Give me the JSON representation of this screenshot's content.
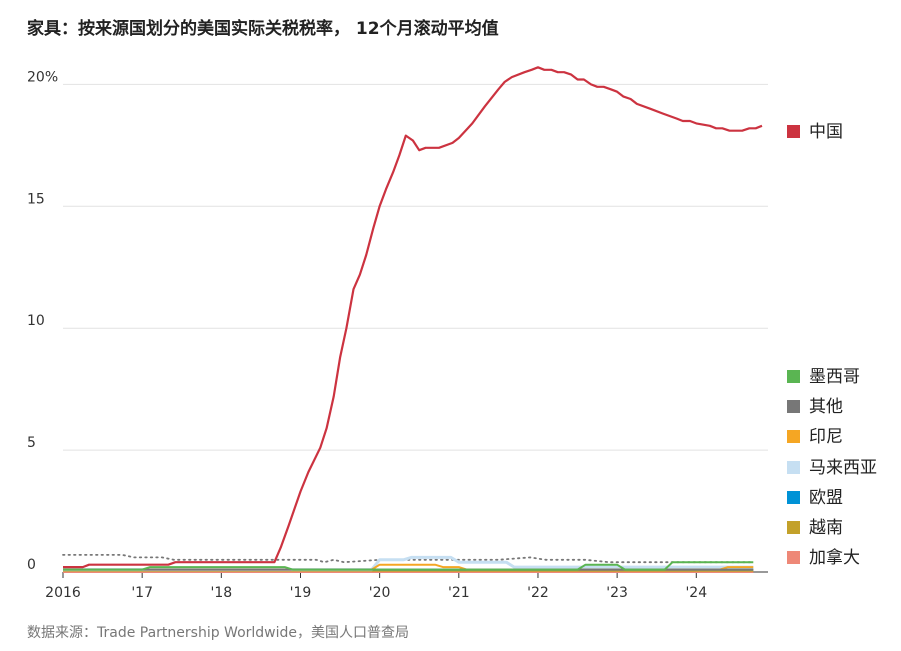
{
  "title": "家具：按来源国划分的美国实际关税税率， 12个月滚动平均值",
  "source": "数据来源：Trade Partnership Worldwide，美国人口普查局",
  "chart_data": {
    "type": "line",
    "x_tick_labels": [
      "2016",
      "'17",
      "'18",
      "'19",
      "'20",
      "'21",
      "'22",
      "'23",
      "'24"
    ],
    "y_tick_labels": [
      "0",
      "5",
      "10",
      "15",
      "20%"
    ],
    "y_ticks": [
      0,
      5,
      10,
      15,
      20
    ],
    "ylim": [
      0,
      21
    ],
    "xlim": [
      2016,
      2024.72
    ],
    "grid": true,
    "legend_position": "right",
    "series": [
      {
        "name": "中国",
        "color": "#cc3340",
        "style": "solid",
        "width": 2.2,
        "points": [
          [
            2016.0,
            0.2
          ],
          [
            2016.25,
            0.2
          ],
          [
            2016.33,
            0.3
          ],
          [
            2016.75,
            0.3
          ],
          [
            2017.0,
            0.3
          ],
          [
            2017.33,
            0.3
          ],
          [
            2017.42,
            0.4
          ],
          [
            2018.0,
            0.4
          ],
          [
            2018.5,
            0.4
          ],
          [
            2018.67,
            0.4
          ],
          [
            2018.75,
            1.0
          ],
          [
            2018.85,
            1.9
          ],
          [
            2019.0,
            3.3
          ],
          [
            2019.1,
            4.1
          ],
          [
            2019.25,
            5.1
          ],
          [
            2019.33,
            5.9
          ],
          [
            2019.42,
            7.2
          ],
          [
            2019.5,
            8.8
          ],
          [
            2019.58,
            10.0
          ],
          [
            2019.67,
            11.6
          ],
          [
            2019.75,
            12.2
          ],
          [
            2019.83,
            13.0
          ],
          [
            2019.92,
            14.1
          ],
          [
            2020.0,
            15.0
          ],
          [
            2020.08,
            15.7
          ],
          [
            2020.17,
            16.4
          ],
          [
            2020.25,
            17.1
          ],
          [
            2020.33,
            17.9
          ],
          [
            2020.42,
            17.7
          ],
          [
            2020.5,
            17.3
          ],
          [
            2020.58,
            17.4
          ],
          [
            2020.75,
            17.4
          ],
          [
            2020.92,
            17.6
          ],
          [
            2021.0,
            17.8
          ],
          [
            2021.17,
            18.4
          ],
          [
            2021.33,
            19.1
          ],
          [
            2021.5,
            19.8
          ],
          [
            2021.58,
            20.1
          ],
          [
            2021.67,
            20.3
          ],
          [
            2021.83,
            20.5
          ],
          [
            2021.92,
            20.6
          ],
          [
            2022.0,
            20.7
          ],
          [
            2022.08,
            20.6
          ],
          [
            2022.17,
            20.6
          ],
          [
            2022.25,
            20.5
          ],
          [
            2022.33,
            20.5
          ],
          [
            2022.42,
            20.4
          ],
          [
            2022.5,
            20.2
          ],
          [
            2022.58,
            20.2
          ],
          [
            2022.67,
            20.0
          ],
          [
            2022.75,
            19.9
          ],
          [
            2022.83,
            19.9
          ],
          [
            2022.92,
            19.8
          ],
          [
            2023.0,
            19.7
          ],
          [
            2023.08,
            19.5
          ],
          [
            2023.17,
            19.4
          ],
          [
            2023.25,
            19.2
          ],
          [
            2023.42,
            19.0
          ],
          [
            2023.58,
            18.8
          ],
          [
            2023.75,
            18.6
          ],
          [
            2023.83,
            18.5
          ],
          [
            2023.92,
            18.5
          ],
          [
            2024.0,
            18.4
          ],
          [
            2024.17,
            18.3
          ],
          [
            2024.25,
            18.2
          ],
          [
            2024.33,
            18.2
          ],
          [
            2024.42,
            18.1
          ],
          [
            2024.58,
            18.1
          ],
          [
            2024.67,
            18.2
          ],
          [
            2024.75,
            18.2
          ],
          [
            2024.83,
            18.3
          ]
        ]
      },
      {
        "name": "墨西哥",
        "color": "#5ab552",
        "style": "solid",
        "width": 2,
        "points": [
          [
            2016.0,
            0.1
          ],
          [
            2017.0,
            0.1
          ],
          [
            2017.1,
            0.2
          ],
          [
            2018.8,
            0.2
          ],
          [
            2018.9,
            0.1
          ],
          [
            2022.5,
            0.1
          ],
          [
            2022.6,
            0.3
          ],
          [
            2023.0,
            0.3
          ],
          [
            2023.1,
            0.1
          ],
          [
            2023.6,
            0.1
          ],
          [
            2023.7,
            0.4
          ],
          [
            2024.72,
            0.4
          ]
        ]
      },
      {
        "name": "其他",
        "color": "#777777",
        "style": "solid",
        "width": 2,
        "points": [
          [
            2016.0,
            0.1
          ],
          [
            2024.72,
            0.1
          ]
        ]
      },
      {
        "name": "印尼",
        "color": "#f5a623",
        "style": "solid",
        "width": 2,
        "points": [
          [
            2016.0,
            0.1
          ],
          [
            2019.9,
            0.1
          ],
          [
            2020.0,
            0.3
          ],
          [
            2020.7,
            0.3
          ],
          [
            2020.8,
            0.2
          ],
          [
            2021.0,
            0.2
          ],
          [
            2021.1,
            0.1
          ],
          [
            2024.3,
            0.1
          ],
          [
            2024.4,
            0.2
          ],
          [
            2024.72,
            0.2
          ]
        ]
      },
      {
        "name": "马来西亚",
        "color": "#c6dff2",
        "style": "solid",
        "width": 3,
        "points": [
          [
            2016.0,
            0.1
          ],
          [
            2019.9,
            0.1
          ],
          [
            2020.0,
            0.5
          ],
          [
            2020.3,
            0.5
          ],
          [
            2020.4,
            0.6
          ],
          [
            2020.9,
            0.6
          ],
          [
            2021.0,
            0.4
          ],
          [
            2021.6,
            0.4
          ],
          [
            2021.7,
            0.2
          ],
          [
            2024.72,
            0.2
          ]
        ]
      },
      {
        "name": "欧盟",
        "color": "#0092d6",
        "style": "solid",
        "width": 2,
        "points": [
          [
            2016.0,
            0.1
          ],
          [
            2024.72,
            0.1
          ]
        ]
      },
      {
        "name": "越南",
        "color": "#c3a12a",
        "style": "solid",
        "width": 2,
        "points": [
          [
            2016.0,
            0.05
          ],
          [
            2024.72,
            0.05
          ]
        ]
      },
      {
        "name": "加拿大",
        "color": "#ee8877",
        "style": "solid",
        "width": 2,
        "points": [
          [
            2016.0,
            0.0
          ],
          [
            2024.72,
            0.0
          ]
        ]
      },
      {
        "name": "",
        "color": "#777777",
        "style": "dotted",
        "width": 1.8,
        "points": [
          [
            2016.0,
            0.7
          ],
          [
            2016.75,
            0.7
          ],
          [
            2016.9,
            0.6
          ],
          [
            2017.25,
            0.6
          ],
          [
            2017.4,
            0.5
          ],
          [
            2018.75,
            0.5
          ],
          [
            2019.2,
            0.5
          ],
          [
            2019.3,
            0.4
          ],
          [
            2019.42,
            0.5
          ],
          [
            2019.55,
            0.4
          ],
          [
            2020.0,
            0.5
          ],
          [
            2020.5,
            0.5
          ],
          [
            2020.9,
            0.5
          ],
          [
            2021.5,
            0.5
          ],
          [
            2021.9,
            0.6
          ],
          [
            2022.1,
            0.5
          ],
          [
            2022.6,
            0.5
          ],
          [
            2022.9,
            0.4
          ],
          [
            2023.5,
            0.4
          ],
          [
            2024.0,
            0.4
          ],
          [
            2024.72,
            0.4
          ]
        ]
      }
    ],
    "legend": [
      {
        "name": "中国",
        "color": "#cc3340"
      },
      {
        "name": "墨西哥",
        "color": "#5ab552"
      },
      {
        "name": "其他",
        "color": "#777777"
      },
      {
        "name": "印尼",
        "color": "#f5a623"
      },
      {
        "name": "马来西亚",
        "color": "#c6dff2"
      },
      {
        "name": "欧盟",
        "color": "#0092d6"
      },
      {
        "name": "越南",
        "color": "#c3a12a"
      },
      {
        "name": "加拿大",
        "color": "#ee8877"
      }
    ]
  }
}
